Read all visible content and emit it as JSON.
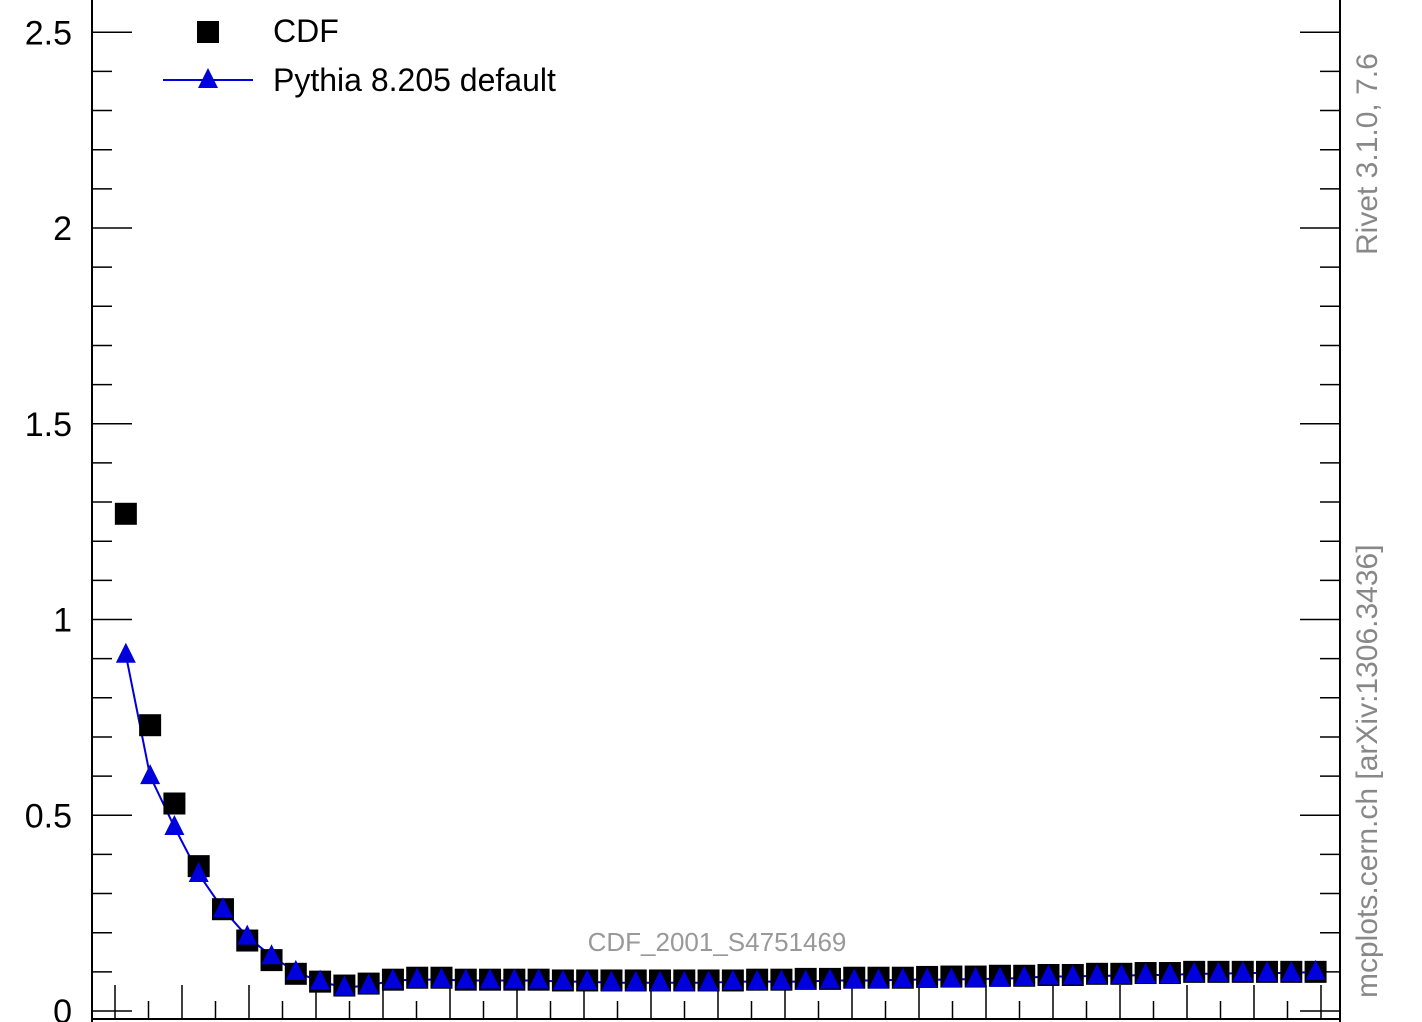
{
  "chart_data": {
    "type": "scatter",
    "title": "",
    "xlabel": "",
    "ylabel": "",
    "ylim": [
      0,
      2.6
    ],
    "y_major_ticks": [
      0,
      0.5,
      1,
      1.5,
      2,
      2.5
    ],
    "y_major_tick_labels": [
      "0",
      "0.5",
      "1",
      "1.5",
      "2",
      "2.5"
    ],
    "y_minor_step": 0.1,
    "x_bins": 50,
    "grid": false,
    "legend_position": "top-left",
    "series": [
      {
        "name": "CDF",
        "marker": "square",
        "color": "#000000",
        "line": false,
        "values": [
          1.27,
          0.73,
          0.53,
          0.37,
          0.26,
          0.18,
          0.13,
          0.095,
          0.075,
          0.065,
          0.07,
          0.08,
          0.085,
          0.085,
          0.08,
          0.08,
          0.08,
          0.08,
          0.078,
          0.078,
          0.078,
          0.078,
          0.078,
          0.078,
          0.078,
          0.078,
          0.08,
          0.08,
          0.082,
          0.082,
          0.085,
          0.085,
          0.085,
          0.087,
          0.088,
          0.088,
          0.09,
          0.09,
          0.092,
          0.092,
          0.095,
          0.095,
          0.097,
          0.097,
          0.1,
          0.1,
          0.1,
          0.1,
          0.1,
          0.1
        ]
      },
      {
        "name": "Pythia 8.205 default",
        "marker": "triangle",
        "color": "#0000dd",
        "line": true,
        "values": [
          0.91,
          0.6,
          0.47,
          0.35,
          0.26,
          0.19,
          0.14,
          0.1,
          0.075,
          0.06,
          0.065,
          0.078,
          0.08,
          0.08,
          0.078,
          0.078,
          0.078,
          0.078,
          0.075,
          0.075,
          0.072,
          0.072,
          0.072,
          0.072,
          0.072,
          0.075,
          0.075,
          0.075,
          0.075,
          0.078,
          0.078,
          0.078,
          0.08,
          0.08,
          0.08,
          0.082,
          0.082,
          0.085,
          0.088,
          0.088,
          0.09,
          0.09,
          0.092,
          0.092,
          0.095,
          0.095,
          0.097,
          0.097,
          0.097,
          0.1
        ]
      }
    ]
  },
  "annotations": {
    "analysis_id": "CDF_2001_S4751469",
    "side_top": "Rivet 3.1.0,  7.6",
    "side_bottom": "mcplots.cern.ch [arXiv:1306.3436]"
  }
}
